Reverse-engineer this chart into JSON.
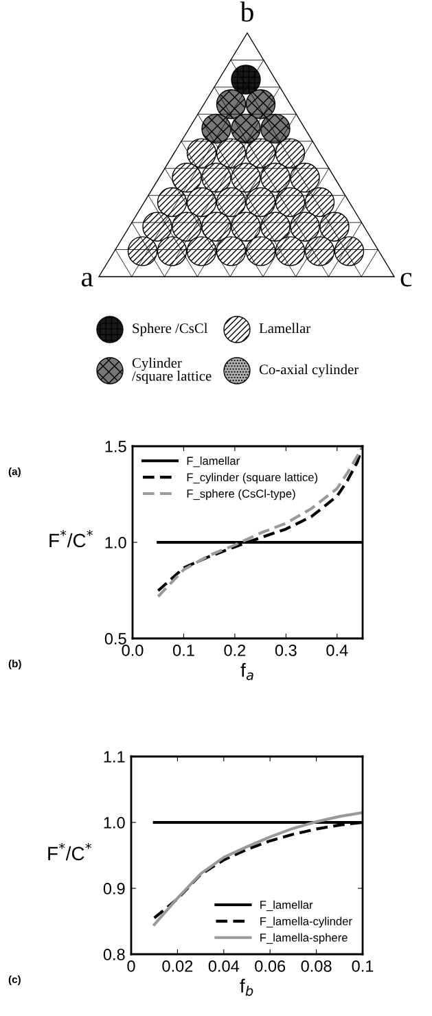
{
  "chart_data": [
    {
      "type": "other",
      "title": "(a)",
      "annotations": [
        "a",
        "b",
        "c"
      ],
      "categories": [
        "Sphere /CsCl",
        "Cylinder\n/square lattice",
        "Lamellar",
        "Co-axial cylinder"
      ],
      "colors": [
        "#1a1a1a",
        "#777777",
        "#ffffff",
        "#b0b0b0"
      ]
    },
    {
      "type": "line",
      "annotations": [
        "(b)"
      ],
      "xlabel": "f$_{a}$",
      "ylabel": "F$^{*}$/C$^{*}$",
      "xlim": [
        0,
        0.45
      ],
      "xticks": [
        {
          "value": 0,
          "label": "0.0"
        },
        0.1,
        0.2,
        0.3,
        0.4
      ],
      "ylim": [
        0.5,
        1.5
      ],
      "yticks": [
        0.5,
        {
          "value": 1,
          "label": "1.0"
        },
        1.5
      ],
      "legend": "top left",
      "grid": false,
      "series": [
        {
          "name": "F_lamellar",
          "color": "#000000",
          "line_style": "solid",
          "x": [
            0.05,
            0.45
          ],
          "values": [
            1.0,
            1.0
          ]
        },
        {
          "name": "F_cylinder (square lattice)",
          "color": "#000000",
          "line_style": "dashed",
          "x": [
            0.05,
            0.1,
            0.15,
            0.2,
            0.25,
            0.3,
            0.35,
            0.4,
            0.42,
            0.44,
            0.45
          ],
          "values": [
            0.748,
            0.867,
            0.926,
            0.976,
            1.024,
            1.069,
            1.134,
            1.24,
            1.32,
            1.42,
            1.5
          ]
        },
        {
          "name": "F_sphere (CsCl-type)",
          "color": "#999999",
          "line_style": "dashed",
          "x": [
            0.05,
            0.1,
            0.15,
            0.2,
            0.25,
            0.3,
            0.35,
            0.4,
            0.42,
            0.44,
            0.45
          ],
          "values": [
            0.718,
            0.857,
            0.932,
            0.986,
            1.048,
            1.099,
            1.176,
            1.28,
            1.36,
            1.45,
            1.5
          ]
        }
      ]
    },
    {
      "type": "line",
      "annotations": [
        "(c)"
      ],
      "xlabel": "f$_{b}$",
      "ylabel": "F$^{*}$/C$^{*}$",
      "xlim": [
        0,
        0.1
      ],
      "xticks": [
        0,
        0.02,
        0.04,
        0.06,
        0.08,
        0.1
      ],
      "ylim": [
        0.8,
        1.1
      ],
      "yticks": [
        0.8,
        0.9,
        {
          "value": 1,
          "label": "1.0"
        },
        1.1
      ],
      "legend": "bottom right",
      "grid": false,
      "series": [
        {
          "name": "F_lamellar",
          "color": "#000000",
          "line_style": "solid",
          "x": [
            0.01,
            0.1
          ],
          "values": [
            1.0,
            1.0
          ]
        },
        {
          "name": "F_lamella-cylinder",
          "color": "#000000",
          "line_style": "dashed",
          "x": [
            0.01,
            0.02,
            0.03,
            0.04,
            0.05,
            0.06,
            0.07,
            0.08,
            0.09,
            0.1
          ],
          "values": [
            0.855,
            0.884,
            0.921,
            0.943,
            0.959,
            0.972,
            0.982,
            0.99,
            0.996,
            1.0
          ]
        },
        {
          "name": "F_lamella-sphere",
          "color": "#999999",
          "line_style": "solid",
          "x": [
            0.01,
            0.02,
            0.03,
            0.04,
            0.05,
            0.06,
            0.07,
            0.08,
            0.09,
            0.1
          ],
          "values": [
            0.845,
            0.885,
            0.922,
            0.947,
            0.963,
            0.978,
            0.991,
            1.001,
            1.009,
            1.015
          ]
        }
      ]
    }
  ]
}
